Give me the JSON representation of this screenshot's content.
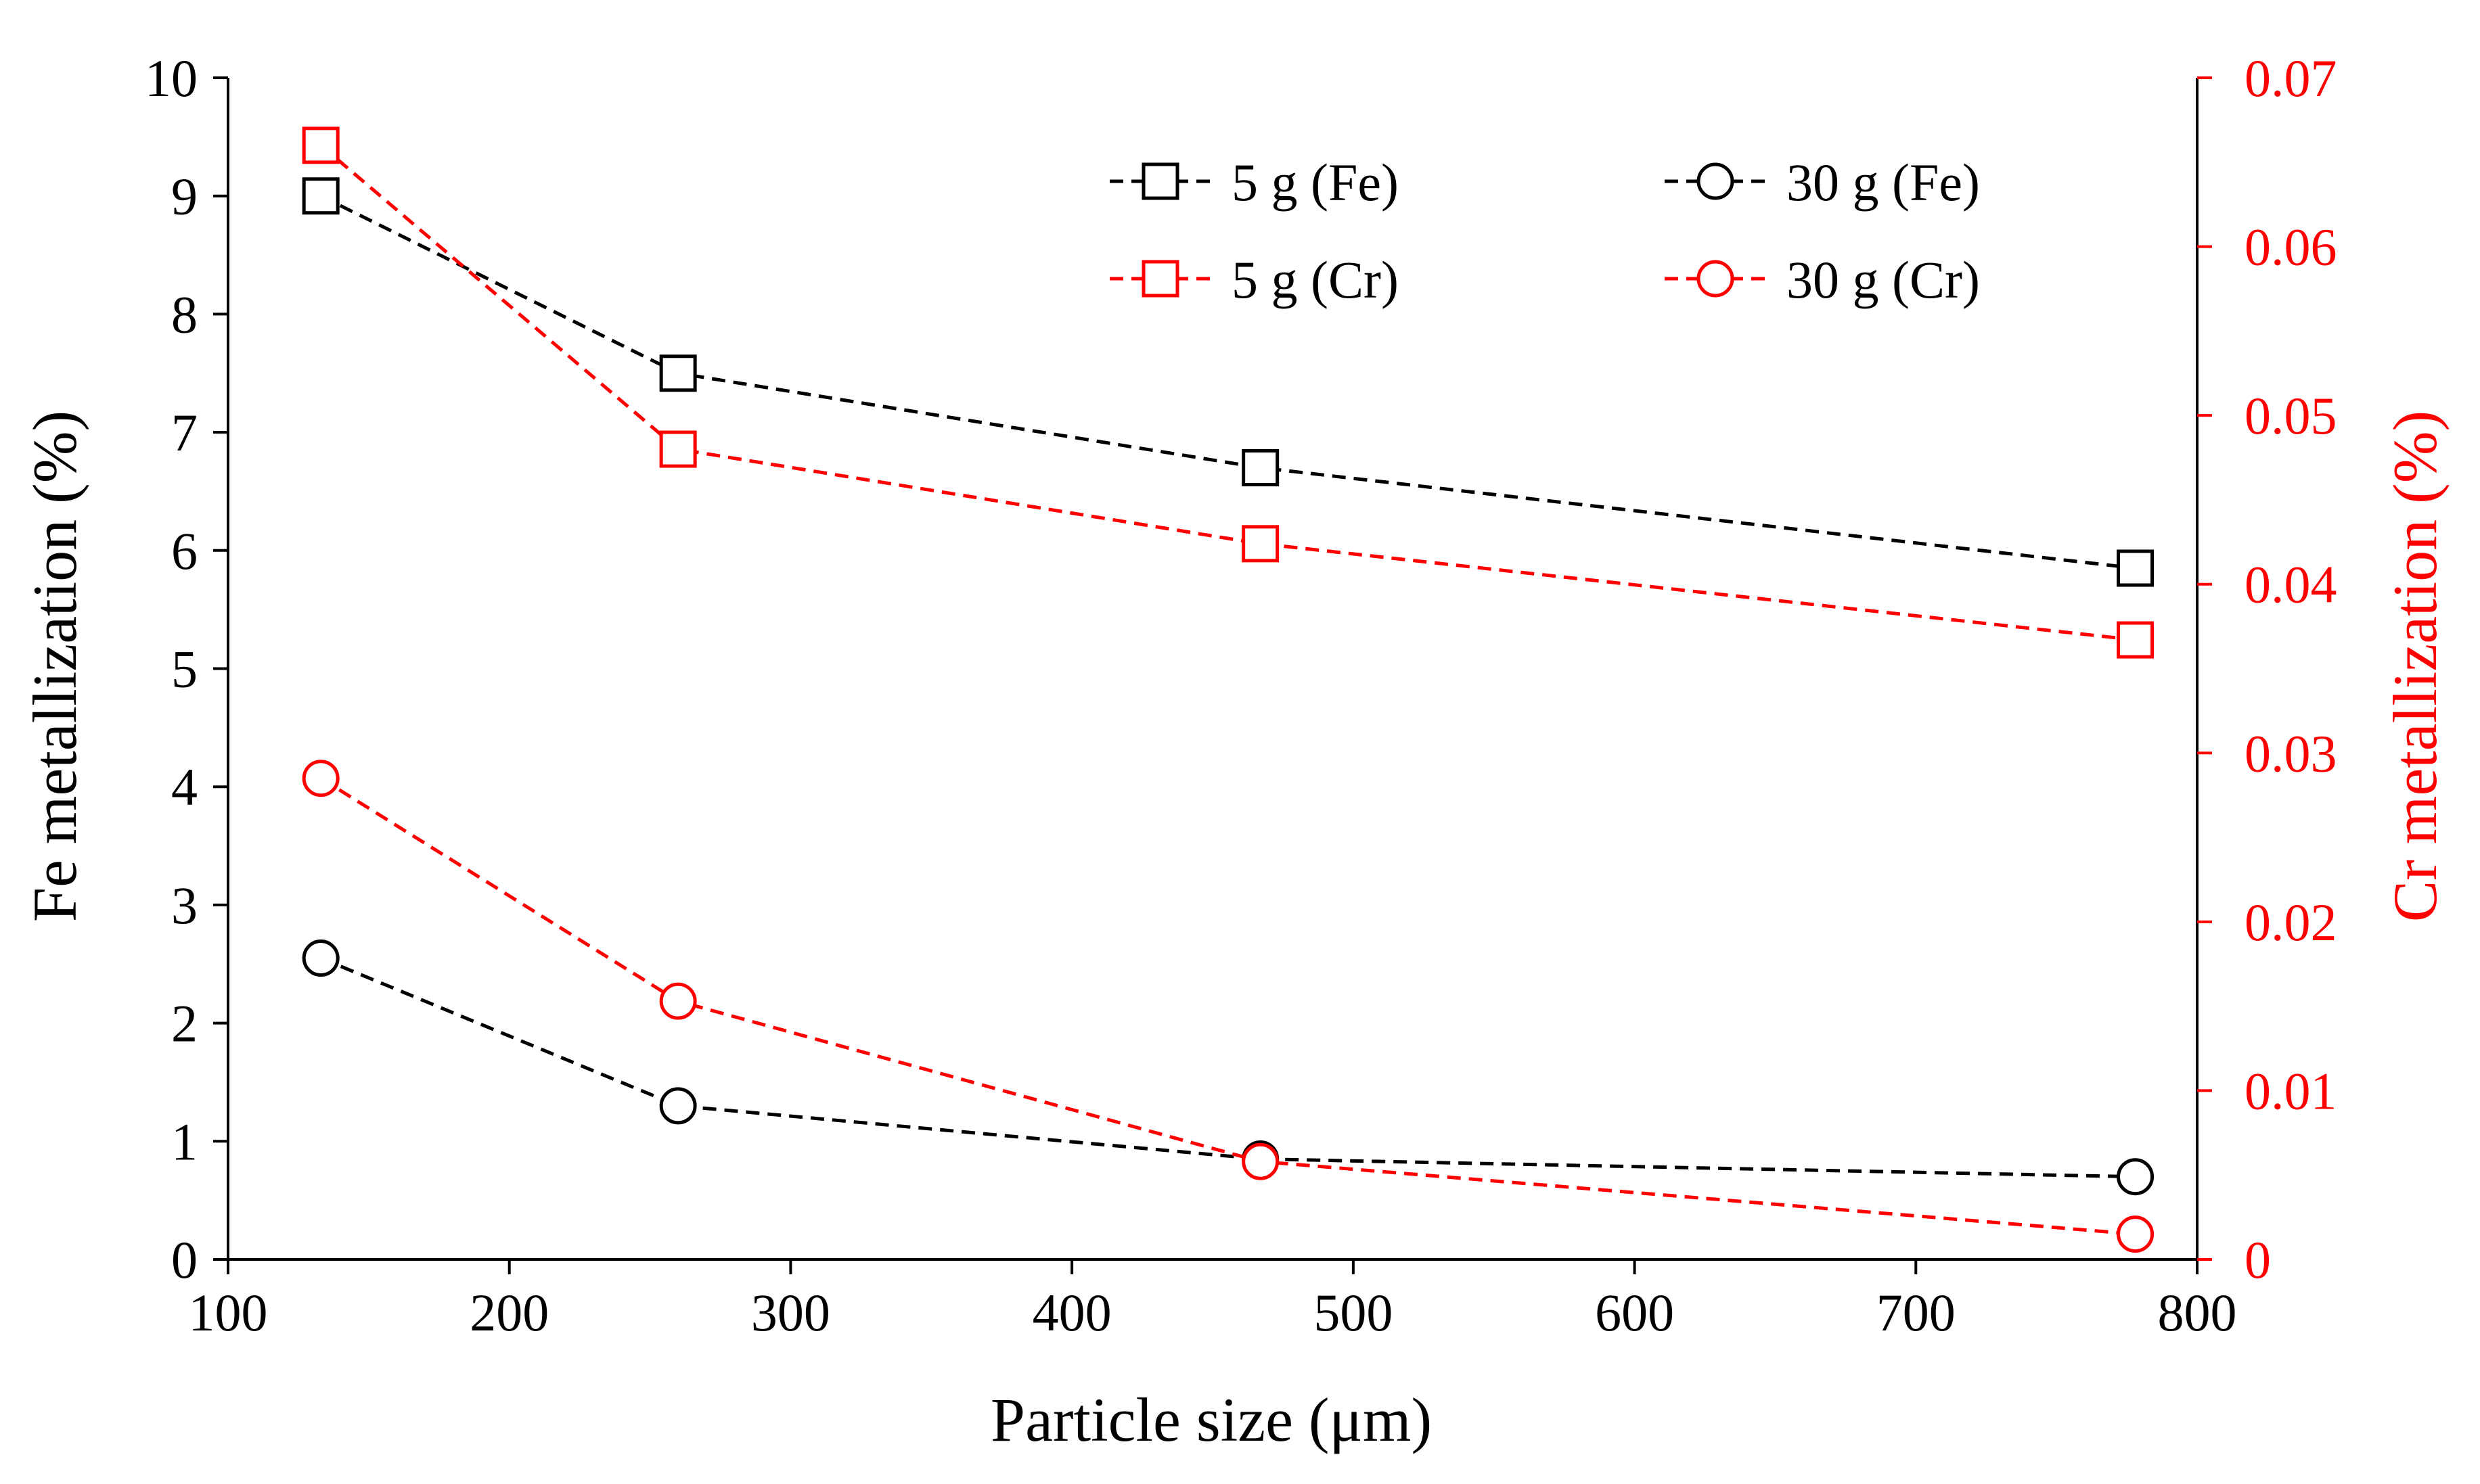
{
  "chart_data": {
    "type": "line",
    "title": "",
    "xlabel": "Particle size (μm)",
    "ylabel_left": "Fe metallization (%)",
    "ylabel_right": "Cr metallization (%)",
    "xlim": [
      100,
      800
    ],
    "ylim_left": [
      0,
      10
    ],
    "ylim_right": [
      0,
      0.07
    ],
    "x_ticks": [
      100,
      200,
      300,
      400,
      500,
      600,
      700,
      800
    ],
    "y_left_ticks": [
      0,
      1,
      2,
      3,
      4,
      5,
      6,
      7,
      8,
      9,
      10
    ],
    "y_right_ticks": [
      0,
      0.01,
      0.02,
      0.03,
      0.04,
      0.05,
      0.06,
      0.07
    ],
    "grid": false,
    "legend_position": "top-right",
    "series": [
      {
        "name": "5 g (Fe)",
        "axis": "left",
        "marker": "square",
        "color": "#000000",
        "x": [
          133,
          260,
          467,
          778
        ],
        "values": [
          9.0,
          7.5,
          6.7,
          5.85
        ]
      },
      {
        "name": "30 g (Fe)",
        "axis": "left",
        "marker": "circle",
        "color": "#000000",
        "x": [
          133,
          260,
          467,
          778
        ],
        "values": [
          2.55,
          1.3,
          0.85,
          0.7
        ]
      },
      {
        "name": "5 g (Cr)",
        "axis": "right",
        "marker": "square",
        "color": "#ff0000",
        "x": [
          133,
          260,
          467,
          778
        ],
        "values": [
          0.066,
          0.048,
          0.0424,
          0.0367
        ]
      },
      {
        "name": "30 g (Cr)",
        "axis": "right",
        "marker": "circle",
        "color": "#ff0000",
        "x": [
          133,
          260,
          467,
          778
        ],
        "values": [
          0.0285,
          0.0153,
          0.0058,
          0.0015
        ]
      }
    ]
  }
}
